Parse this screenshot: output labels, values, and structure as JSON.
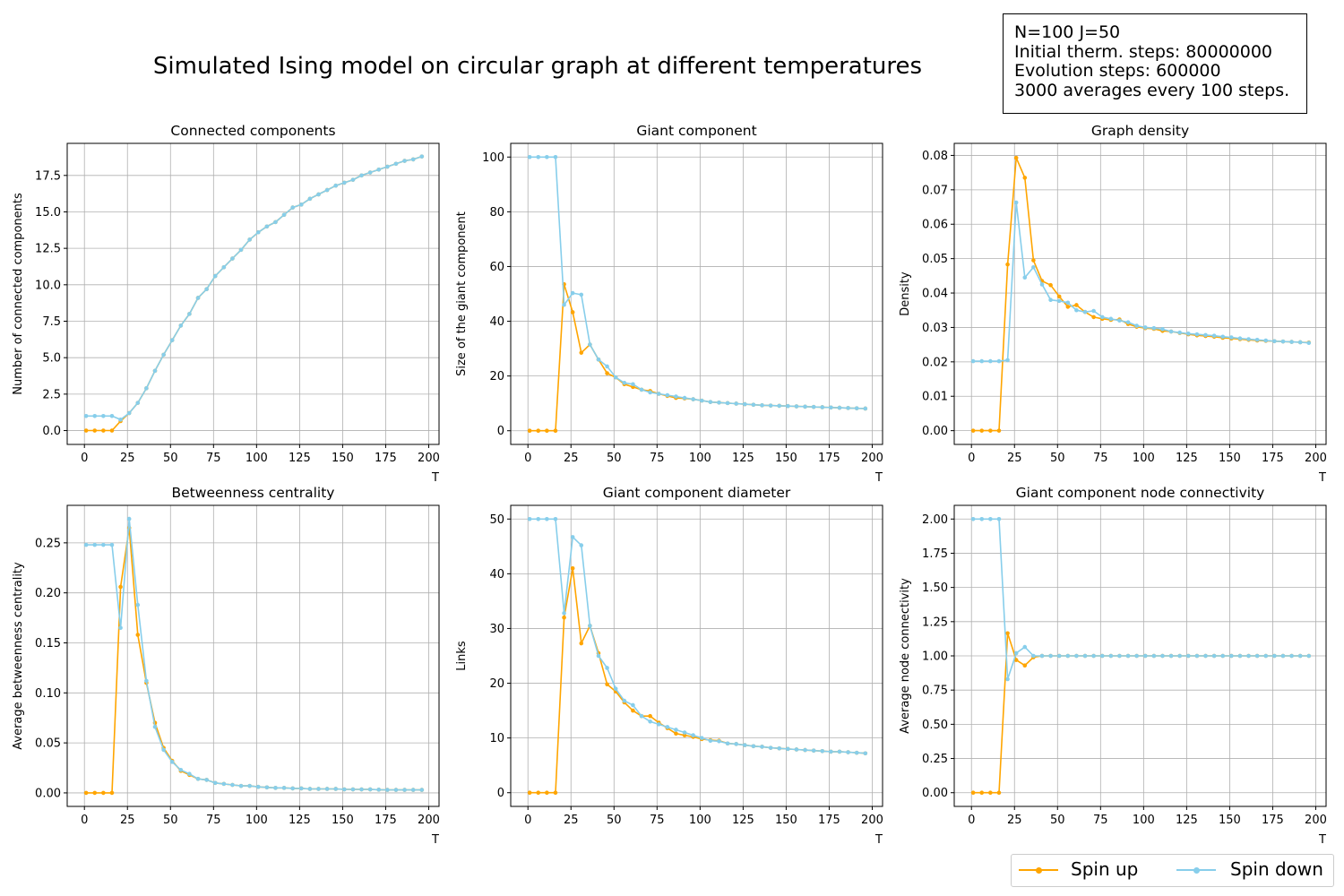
{
  "figure": {
    "title": "Simulated Ising model on circular graph at different temperatures",
    "info_box": [
      "N=100 J=50",
      "Initial therm. steps: 80000000",
      "Evolution steps: 600000",
      "3000 averages every 100 steps."
    ],
    "legend": [
      {
        "name": "Spin up",
        "color": "#ffa500"
      },
      {
        "name": "Spin down",
        "color": "#87ceeb"
      }
    ]
  },
  "chart_data": [
    {
      "type": "line",
      "title": "Connected components",
      "xlabel": "T",
      "ylabel": "Number of connected components",
      "xlim": [
        -10,
        206
      ],
      "ylim": [
        -0.95,
        19.7
      ],
      "xticks": [
        0,
        25,
        50,
        75,
        100,
        125,
        150,
        175,
        200
      ],
      "yticks": [
        0.0,
        2.5,
        5.0,
        7.5,
        10.0,
        12.5,
        15.0,
        17.5
      ],
      "ytick_decimals": 1,
      "grid": true,
      "x": [
        1,
        6,
        11,
        16,
        21,
        26,
        31,
        36,
        41,
        46,
        51,
        56,
        61,
        66,
        71,
        76,
        81,
        86,
        91,
        96,
        101,
        106,
        111,
        116,
        121,
        126,
        131,
        136,
        141,
        146,
        151,
        156,
        161,
        166,
        171,
        176,
        181,
        186,
        191,
        196
      ],
      "series": [
        {
          "name": "Spin up",
          "color": "#ffa500",
          "values": [
            0,
            0,
            0,
            0,
            0.65,
            1.2,
            1.9,
            2.9,
            4.1,
            5.2,
            6.2,
            7.2,
            8.0,
            9.1,
            9.7,
            10.6,
            11.2,
            11.8,
            12.4,
            13.1,
            13.6,
            14.0,
            14.3,
            14.8,
            15.3,
            15.5,
            15.9,
            16.2,
            16.5,
            16.8,
            17.0,
            17.2,
            17.5,
            17.7,
            17.9,
            18.1,
            18.3,
            18.5,
            18.6,
            18.8
          ]
        },
        {
          "name": "Spin down",
          "color": "#87ceeb",
          "values": [
            1.0,
            1.0,
            1.0,
            1.0,
            0.75,
            1.2,
            1.9,
            2.9,
            4.1,
            5.2,
            6.2,
            7.2,
            8.0,
            9.1,
            9.7,
            10.6,
            11.2,
            11.8,
            12.4,
            13.1,
            13.6,
            14.0,
            14.3,
            14.8,
            15.3,
            15.5,
            15.9,
            16.2,
            16.5,
            16.8,
            17.0,
            17.2,
            17.5,
            17.7,
            17.9,
            18.1,
            18.3,
            18.5,
            18.6,
            18.8
          ]
        }
      ]
    },
    {
      "type": "line",
      "title": "Giant component",
      "xlabel": "T",
      "ylabel": "Size of the giant component",
      "xlim": [
        -10,
        206
      ],
      "ylim": [
        -5,
        105
      ],
      "xticks": [
        0,
        25,
        50,
        75,
        100,
        125,
        150,
        175,
        200
      ],
      "yticks": [
        0,
        20,
        40,
        60,
        80,
        100
      ],
      "ytick_decimals": 0,
      "grid": true,
      "x": [
        1,
        6,
        11,
        16,
        21,
        26,
        31,
        36,
        41,
        46,
        51,
        56,
        61,
        66,
        71,
        76,
        81,
        86,
        91,
        96,
        101,
        106,
        111,
        116,
        121,
        126,
        131,
        136,
        141,
        146,
        151,
        156,
        161,
        166,
        171,
        176,
        181,
        186,
        191,
        196
      ],
      "series": [
        {
          "name": "Spin up",
          "color": "#ffa500",
          "values": [
            0,
            0,
            0,
            0,
            53.5,
            43.3,
            28.5,
            31.5,
            26.0,
            21.0,
            19.5,
            17.0,
            16.0,
            15.0,
            14.5,
            13.5,
            12.7,
            12.0,
            11.8,
            11.5,
            11.0,
            10.5,
            10.3,
            10.1,
            9.9,
            9.7,
            9.5,
            9.3,
            9.2,
            9.1,
            9.0,
            8.9,
            8.8,
            8.7,
            8.6,
            8.5,
            8.4,
            8.3,
            8.2,
            8.1
          ]
        },
        {
          "name": "Spin down",
          "color": "#87ceeb",
          "values": [
            100,
            100,
            100,
            100,
            46.0,
            50.3,
            49.7,
            31.5,
            26.0,
            23.5,
            19.5,
            17.5,
            17.0,
            15.0,
            14.0,
            13.5,
            13.0,
            12.5,
            12.0,
            11.5,
            11.0,
            10.5,
            10.3,
            10.1,
            9.9,
            9.7,
            9.5,
            9.3,
            9.2,
            9.1,
            9.0,
            8.9,
            8.8,
            8.7,
            8.6,
            8.5,
            8.4,
            8.3,
            8.2,
            8.1
          ]
        }
      ]
    },
    {
      "type": "line",
      "title": "Graph density",
      "xlabel": "T",
      "ylabel": "Density",
      "xlim": [
        -10,
        206
      ],
      "ylim": [
        -0.004,
        0.0835
      ],
      "xticks": [
        0,
        25,
        50,
        75,
        100,
        125,
        150,
        175,
        200
      ],
      "yticks": [
        0.0,
        0.01,
        0.02,
        0.03,
        0.04,
        0.05,
        0.06,
        0.07,
        0.08
      ],
      "ytick_decimals": 2,
      "grid": true,
      "x": [
        1,
        6,
        11,
        16,
        21,
        26,
        31,
        36,
        41,
        46,
        51,
        56,
        61,
        66,
        71,
        76,
        81,
        86,
        91,
        96,
        101,
        106,
        111,
        116,
        121,
        126,
        131,
        136,
        141,
        146,
        151,
        156,
        161,
        166,
        171,
        176,
        181,
        186,
        191,
        196
      ],
      "series": [
        {
          "name": "Spin up",
          "color": "#ffa500",
          "values": [
            0,
            0,
            0,
            0,
            0.0483,
            0.0793,
            0.0735,
            0.0495,
            0.0435,
            0.0423,
            0.039,
            0.036,
            0.0365,
            0.0345,
            0.033,
            0.0325,
            0.0322,
            0.0323,
            0.031,
            0.0302,
            0.0298,
            0.0296,
            0.029,
            0.0288,
            0.0284,
            0.028,
            0.0277,
            0.0275,
            0.0273,
            0.027,
            0.0268,
            0.0266,
            0.0264,
            0.0262,
            0.0261,
            0.026,
            0.0259,
            0.0258,
            0.0257,
            0.0256
          ]
        },
        {
          "name": "Spin down",
          "color": "#87ceeb",
          "values": [
            0.0202,
            0.0202,
            0.0202,
            0.0202,
            0.0205,
            0.0663,
            0.0445,
            0.0475,
            0.0425,
            0.038,
            0.0377,
            0.0372,
            0.035,
            0.0345,
            0.0348,
            0.033,
            0.0325,
            0.032,
            0.0315,
            0.0305,
            0.03,
            0.0298,
            0.0295,
            0.0288,
            0.0285,
            0.0282,
            0.028,
            0.0278,
            0.0276,
            0.0273,
            0.0271,
            0.0268,
            0.0266,
            0.0264,
            0.0262,
            0.026,
            0.0259,
            0.0258,
            0.0257,
            0.0255
          ]
        }
      ]
    },
    {
      "type": "line",
      "title": "Betweenness centrality",
      "xlabel": "T",
      "ylabel": "Average betweenness centrality",
      "xlim": [
        -10,
        206
      ],
      "ylim": [
        -0.0135,
        0.2875
      ],
      "xticks": [
        0,
        25,
        50,
        75,
        100,
        125,
        150,
        175,
        200
      ],
      "yticks": [
        0.0,
        0.05,
        0.1,
        0.15,
        0.2,
        0.25
      ],
      "ytick_decimals": 2,
      "grid": true,
      "x": [
        1,
        6,
        11,
        16,
        21,
        26,
        31,
        36,
        41,
        46,
        51,
        56,
        61,
        66,
        71,
        76,
        81,
        86,
        91,
        96,
        101,
        106,
        111,
        116,
        121,
        126,
        131,
        136,
        141,
        146,
        151,
        156,
        161,
        166,
        171,
        176,
        181,
        186,
        191,
        196
      ],
      "series": [
        {
          "name": "Spin up",
          "color": "#ffa500",
          "values": [
            0,
            0,
            0,
            0,
            0.206,
            0.265,
            0.158,
            0.11,
            0.07,
            0.045,
            0.032,
            0.022,
            0.018,
            0.014,
            0.013,
            0.01,
            0.009,
            0.008,
            0.007,
            0.007,
            0.006,
            0.0055,
            0.005,
            0.005,
            0.0045,
            0.0045,
            0.004,
            0.004,
            0.004,
            0.004,
            0.0035,
            0.0035,
            0.0035,
            0.0035,
            0.0032,
            0.003,
            0.003,
            0.003,
            0.003,
            0.003
          ]
        },
        {
          "name": "Spin down",
          "color": "#87ceeb",
          "values": [
            0.248,
            0.248,
            0.248,
            0.248,
            0.165,
            0.274,
            0.188,
            0.112,
            0.066,
            0.043,
            0.031,
            0.023,
            0.019,
            0.014,
            0.013,
            0.01,
            0.009,
            0.008,
            0.007,
            0.007,
            0.006,
            0.0055,
            0.005,
            0.005,
            0.0045,
            0.0045,
            0.004,
            0.004,
            0.004,
            0.004,
            0.0035,
            0.0035,
            0.0035,
            0.0035,
            0.0032,
            0.003,
            0.003,
            0.003,
            0.003,
            0.003
          ]
        }
      ]
    },
    {
      "type": "line",
      "title": "Giant component diameter",
      "xlabel": "T",
      "ylabel": "Links",
      "xlim": [
        -10,
        206
      ],
      "ylim": [
        -2.5,
        52.5
      ],
      "xticks": [
        0,
        25,
        50,
        75,
        100,
        125,
        150,
        175,
        200
      ],
      "yticks": [
        0,
        10,
        20,
        30,
        40,
        50
      ],
      "ytick_decimals": 0,
      "grid": true,
      "x": [
        1,
        6,
        11,
        16,
        21,
        26,
        31,
        36,
        41,
        46,
        51,
        56,
        61,
        66,
        71,
        76,
        81,
        86,
        91,
        96,
        101,
        106,
        111,
        116,
        121,
        126,
        131,
        136,
        141,
        146,
        151,
        156,
        161,
        166,
        171,
        176,
        181,
        186,
        191,
        196
      ],
      "series": [
        {
          "name": "Spin up",
          "color": "#ffa500",
          "values": [
            0,
            0,
            0,
            0,
            32.0,
            41.0,
            27.3,
            30.5,
            25.5,
            19.8,
            18.5,
            16.5,
            15.0,
            14.0,
            14.0,
            12.8,
            11.8,
            10.8,
            10.5,
            10.2,
            9.8,
            9.6,
            9.5,
            9.0,
            8.9,
            8.7,
            8.5,
            8.4,
            8.2,
            8.1,
            8.0,
            7.9,
            7.8,
            7.7,
            7.6,
            7.5,
            7.5,
            7.4,
            7.3,
            7.2
          ]
        },
        {
          "name": "Spin down",
          "color": "#87ceeb",
          "values": [
            50,
            50,
            50,
            50,
            32.8,
            46.7,
            45.2,
            30.5,
            25.0,
            22.8,
            19.0,
            16.8,
            16.0,
            14.0,
            13.0,
            12.5,
            12.0,
            11.5,
            11.0,
            10.5,
            10.0,
            9.5,
            9.4,
            9.0,
            8.9,
            8.7,
            8.5,
            8.4,
            8.2,
            8.1,
            8.0,
            7.9,
            7.8,
            7.7,
            7.6,
            7.5,
            7.5,
            7.4,
            7.3,
            7.2
          ]
        }
      ]
    },
    {
      "type": "line",
      "title": "Giant component node connectivity",
      "xlabel": "T",
      "ylabel": "Average node connectivity",
      "xlim": [
        -10,
        206
      ],
      "ylim": [
        -0.1,
        2.1
      ],
      "xticks": [
        0,
        25,
        50,
        75,
        100,
        125,
        150,
        175,
        200
      ],
      "yticks": [
        0.0,
        0.25,
        0.5,
        0.75,
        1.0,
        1.25,
        1.5,
        1.75,
        2.0
      ],
      "ytick_decimals": 2,
      "grid": true,
      "x": [
        1,
        6,
        11,
        16,
        21,
        26,
        31,
        36,
        41,
        46,
        51,
        56,
        61,
        66,
        71,
        76,
        81,
        86,
        91,
        96,
        101,
        106,
        111,
        116,
        121,
        126,
        131,
        136,
        141,
        146,
        151,
        156,
        161,
        166,
        171,
        176,
        181,
        186,
        191,
        196
      ],
      "series": [
        {
          "name": "Spin up",
          "color": "#ffa500",
          "values": [
            0,
            0,
            0,
            0,
            1.165,
            0.97,
            0.93,
            0.99,
            1.0,
            1.0,
            1.0,
            1.0,
            1.0,
            1.0,
            1.0,
            1.0,
            1.0,
            1.0,
            1.0,
            1.0,
            1.0,
            1.0,
            1.0,
            1.0,
            1.0,
            1.0,
            1.0,
            1.0,
            1.0,
            1.0,
            1.0,
            1.0,
            1.0,
            1.0,
            1.0,
            1.0,
            1.0,
            1.0,
            1.0,
            1.0
          ]
        },
        {
          "name": "Spin down",
          "color": "#87ceeb",
          "values": [
            2.0,
            2.0,
            2.0,
            2.0,
            0.83,
            1.02,
            1.065,
            1.0,
            1.0,
            1.0,
            1.0,
            1.0,
            1.0,
            1.0,
            1.0,
            1.0,
            1.0,
            1.0,
            1.0,
            1.0,
            1.0,
            1.0,
            1.0,
            1.0,
            1.0,
            1.0,
            1.0,
            1.0,
            1.0,
            1.0,
            1.0,
            1.0,
            1.0,
            1.0,
            1.0,
            1.0,
            1.0,
            1.0,
            1.0,
            1.0
          ]
        }
      ]
    }
  ]
}
